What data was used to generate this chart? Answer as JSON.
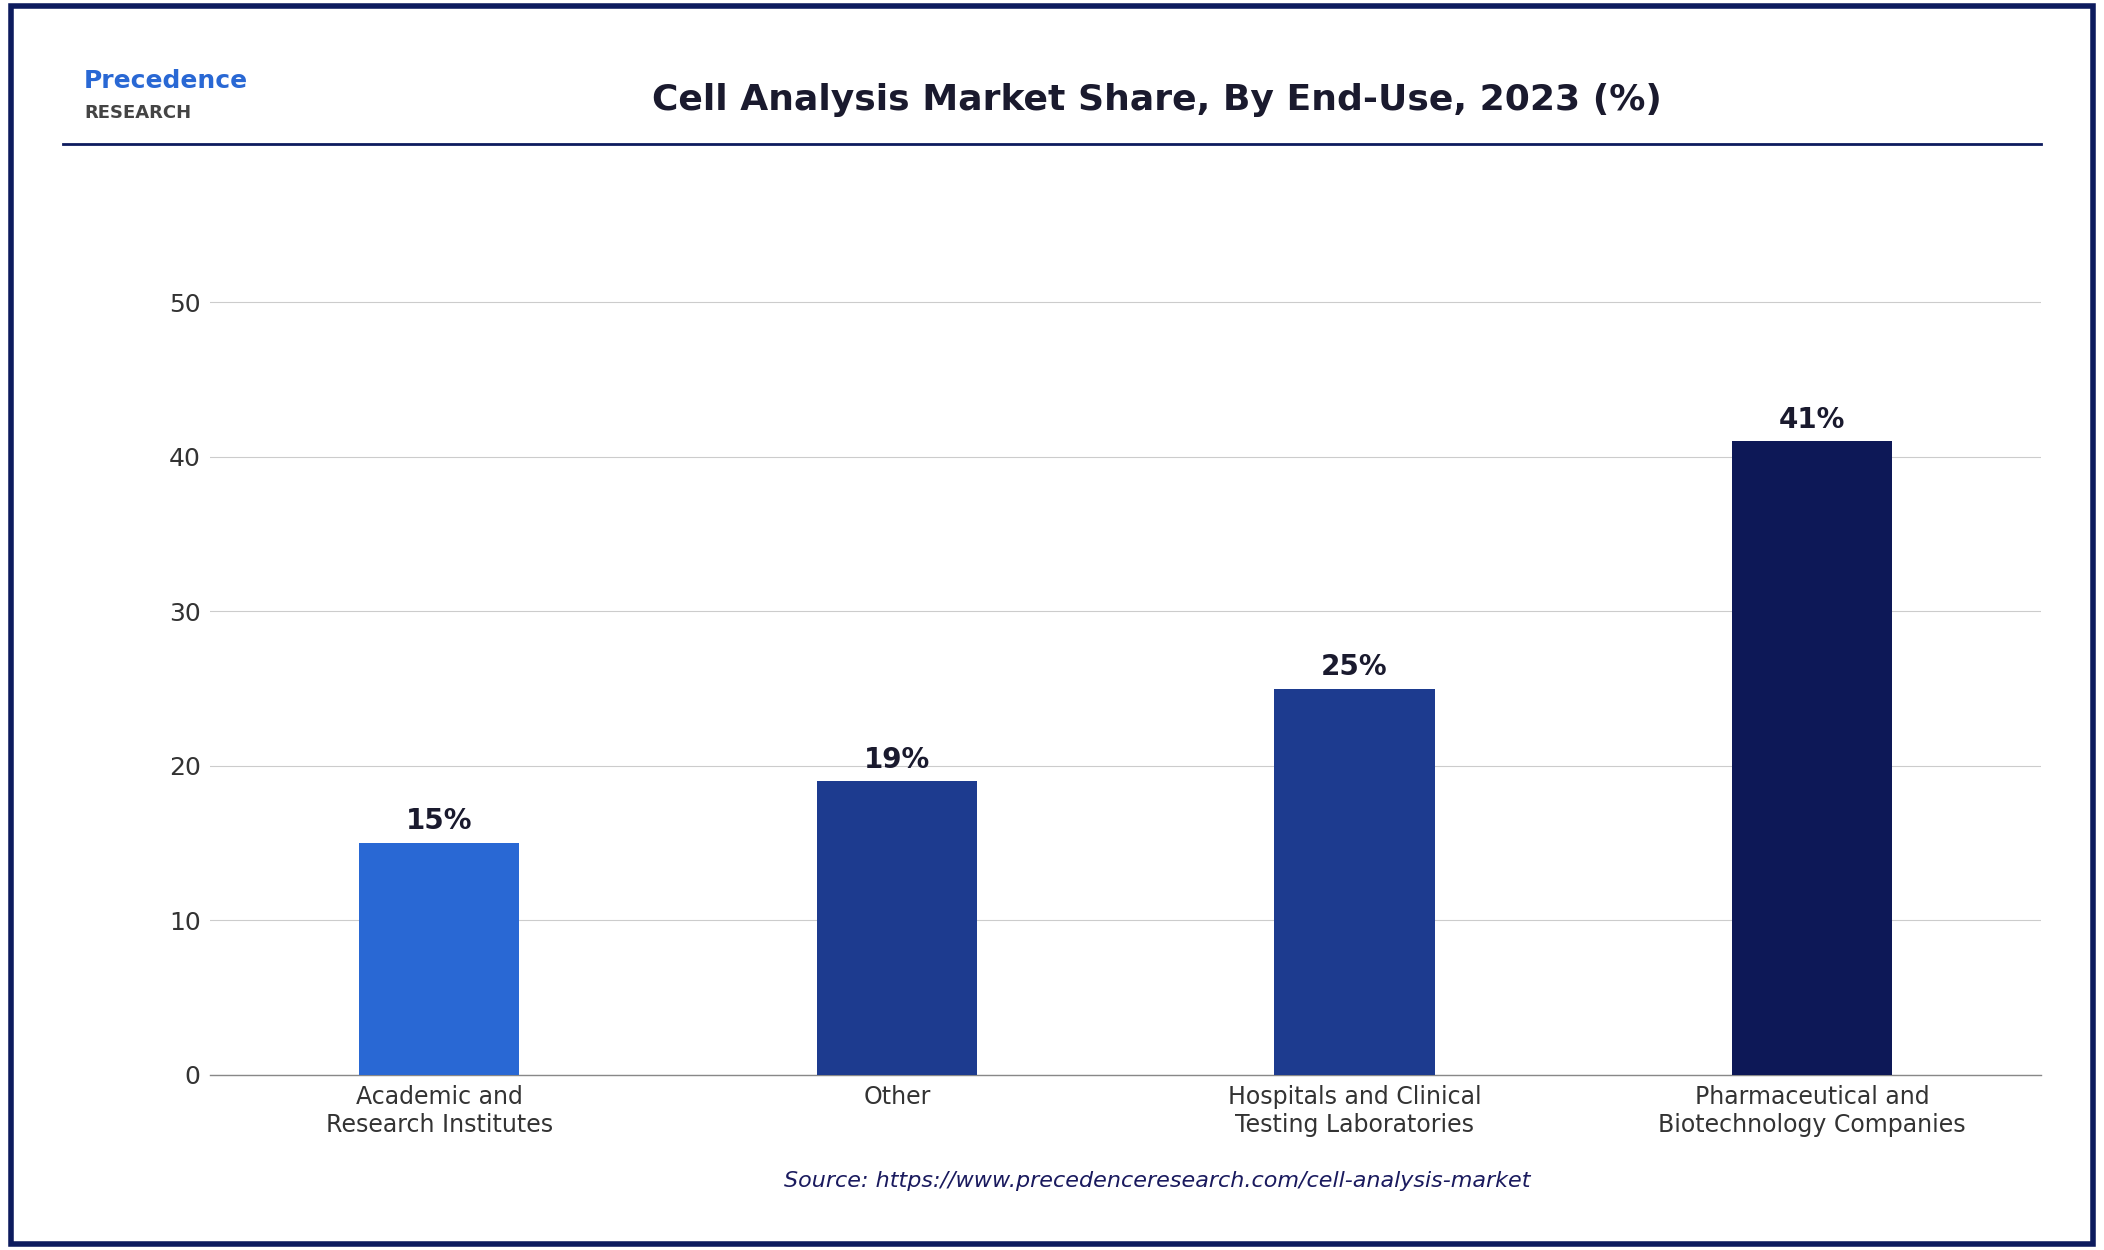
{
  "title": "Cell Analysis Market Share, By End-Use, 2023 (%)",
  "categories": [
    "Academic and\nResearch Institutes",
    "Other",
    "Hospitals and Clinical\nTesting Laboratories",
    "Pharmaceutical and\nBiotechnology Companies"
  ],
  "values": [
    15,
    19,
    25,
    41
  ],
  "labels": [
    "15%",
    "19%",
    "25%",
    "41%"
  ],
  "bar_colors": [
    "#2962CC",
    "#1E3A8A",
    "#1E3A8A",
    "#0D1B5E"
  ],
  "bar_colors_specific": [
    "#3575D5",
    "#2050B5",
    "#2050B5",
    "#0D1B5E"
  ],
  "ylim": [
    0,
    55
  ],
  "yticks": [
    0,
    10,
    20,
    30,
    40,
    50
  ],
  "background_color": "#FFFFFF",
  "plot_bg_color": "#FFFFFF",
  "title_fontsize": 26,
  "tick_fontsize": 18,
  "label_fontsize": 20,
  "source_text": "Source: https://www.precedenceresearch.com/cell-analysis-market",
  "source_fontsize": 16,
  "border_color": "#0D1B5E",
  "grid_color": "#CCCCCC"
}
